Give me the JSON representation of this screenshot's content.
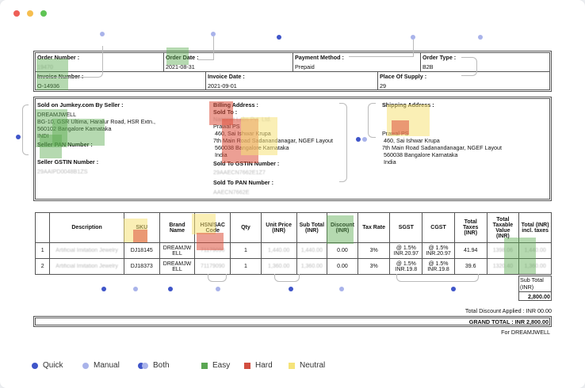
{
  "order": {
    "order_number_label": "Order Number :",
    "order_number": "19470",
    "order_date_label": "Order Date :",
    "order_date": "2021-08-31",
    "payment_method_label": "Payment Method :",
    "payment_method": "Prepaid",
    "order_type_label": "Order Type :",
    "order_type": "B2B",
    "invoice_number_label": "Invoice Number :",
    "invoice_number": "O-14936",
    "invoice_date_label": "Invoice Date :",
    "invoice_date": "2021-09-01",
    "place_of_supply_label": "Place Of Supply :",
    "place_of_supply": "29"
  },
  "seller": {
    "heading": "Sold on Jumkey.com By Seller :",
    "name": "DREAMJWELL",
    "address1": "BG-10, GSR Ultima, Haralur Road, HSR Extn.,",
    "address2": "560102 Bangalore Karnataka",
    "country": "INDI",
    "pan_label": "Seller PAN Number :",
    "pan": "",
    "gstin_label": "Seller GSTIN Number :",
    "gstin": "29AAIPD0048B1ZS"
  },
  "billing": {
    "heading": "Billing Address :",
    "sold_to_label": "Sold To :",
    "company": "Nanonet Labs Pvt. Ltd.",
    "name": "Prawal PS",
    "line1": "460, Sai Ishwar Krupa",
    "line2": "7th Main Road Sadanandanagar, NGEF Layout",
    "line3": "560038 Bangalore Karnataka",
    "country": "India",
    "gstin_label": "Sold To GSTIN Number :",
    "gstin": "29AAECN7662E1Z7",
    "pan_label": "Sold To PAN Number :",
    "pan": "AAECN7662E"
  },
  "shipping": {
    "heading": "Shipping Address :",
    "name": "Prawal PS",
    "line1": "460, Sai Ishwar Krupa",
    "line2": "7th Main Road Sadanandanagar, NGEF Layout",
    "line3": "560038 Bangalore Karnataka",
    "country": "India"
  },
  "table": {
    "headers": [
      "",
      "Description",
      "SKU",
      "Brand Name",
      "HSN/SAC Code",
      "Qty",
      "Unit Price (INR)",
      "Sub Total (INR)",
      "Discount (INR)",
      "Tax Rate",
      "SGST",
      "CGST",
      "Total Taxes (INR)",
      "Total Taxable Value (INR)",
      "Total (INR) incl. taxes"
    ],
    "rows": [
      [
        "1",
        "Artificial Imitation Jewelry",
        "DJ18145",
        "DREAMJW ELL",
        "71179090",
        "1",
        "1,440.00",
        "1,440.00",
        "0.00",
        "3%",
        "@ 1.5% INR.20.97",
        "@ 1.5% INR.20.97",
        "41.94",
        "1398.06",
        "1,440.00"
      ],
      [
        "2",
        "Artificial Imitation Jewelry",
        "DJ18373",
        "DREAMJW ELL",
        "71179090",
        "1",
        "1,360.00",
        "1,360.00",
        "0.00",
        "3%",
        "@ 1.5% INR.19.8",
        "@ 1.5% INR.19.8",
        "39.6",
        "1320.40",
        "1,360.00"
      ]
    ]
  },
  "totals": {
    "subtotal_label": "Sub Total (INR)",
    "subtotal": "2,800.00",
    "discount": "Total Discount Applied : INR 00.00",
    "grand_total": "GRAND TOTAL : INR 2,800.00",
    "signature": "For DREAMJWELL"
  },
  "legend": {
    "quick": "Quick",
    "manual": "Manual",
    "both": "Both",
    "easy": "Easy",
    "hard": "Hard",
    "neutral": "Neutral",
    "colors": {
      "quick": "#3f55c9",
      "manual": "#a9b3ea",
      "easy": "#5aa652",
      "hard": "#d24e40",
      "neutral": "#f5e37a"
    }
  }
}
